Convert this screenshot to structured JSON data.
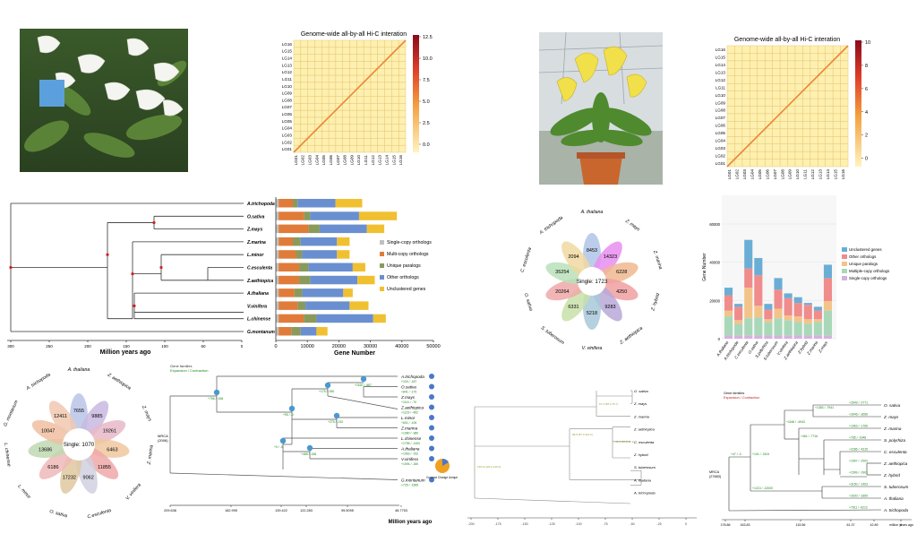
{
  "heatmap_left": {
    "title": "Genome-wide all-by-all Hi-C interation",
    "labels": [
      "LG01",
      "LG02",
      "LG03",
      "LG04",
      "LG05",
      "LG06",
      "LG07",
      "LG08",
      "LG09",
      "LG10",
      "LG11",
      "LG12",
      "LG13",
      "LG14",
      "LG15",
      "LG16"
    ],
    "colorbar_ticks": [
      "12.5",
      "10.0",
      "7.5",
      "5.0",
      "2.5",
      "0.0"
    ]
  },
  "heatmap_right": {
    "title": "Genome-wide all-by-all Hi-C interation",
    "labels": [
      "LG01",
      "LG02",
      "LG03",
      "LG04",
      "LG05",
      "LG06",
      "LG07",
      "LG08",
      "LG09",
      "LG10",
      "LG11",
      "LG12",
      "LG13",
      "LG14",
      "LG15",
      "LG16"
    ],
    "colorbar_ticks": [
      "10",
      "8",
      "6",
      "4",
      "2",
      "0"
    ]
  },
  "tree_left": {
    "species": [
      "A.trichopoda",
      "O.sativa",
      "Z.mays",
      "Z.marina",
      "L.minor",
      "C.esculenta",
      "Z.aethiopica",
      "A.thaliana",
      "V.vinifera",
      "L.chinense",
      "G.montanum"
    ],
    "axis_ticks": [
      "300",
      "250",
      "200",
      "150",
      "100",
      "50",
      "0"
    ],
    "axis_label": "Million years ago"
  },
  "chart_data": [
    {
      "type": "bar",
      "orientation": "horizontal",
      "stacked": true,
      "categories": [
        "A.trichopoda",
        "O.sativa",
        "Z.mays",
        "Z.marina",
        "L.minor",
        "C.esculenta",
        "Z.aethiopica",
        "A.thaliana",
        "V.vinifera",
        "L.chinense",
        "G.montanum"
      ],
      "series": [
        {
          "name": "Single-copy orthologs",
          "values": [
            900,
            900,
            900,
            900,
            900,
            900,
            900,
            900,
            900,
            900,
            900
          ]
        },
        {
          "name": "Multi-copy orthologs",
          "values": [
            4500,
            8000,
            9500,
            4500,
            5500,
            6500,
            6500,
            5000,
            6000,
            8000,
            4000
          ]
        },
        {
          "name": "Unique paralogs",
          "values": [
            1500,
            2000,
            3500,
            2500,
            2000,
            3000,
            3500,
            2500,
            2500,
            4000,
            3000
          ]
        },
        {
          "name": "Other orthologs",
          "values": [
            12000,
            15500,
            15000,
            11500,
            11000,
            14000,
            15000,
            13000,
            14000,
            18000,
            5000
          ]
        },
        {
          "name": "Unclustered genes",
          "values": [
            8500,
            12000,
            5500,
            4000,
            4000,
            4000,
            5500,
            3000,
            6000,
            4000,
            3500
          ]
        }
      ],
      "xlabel": "Gene Number",
      "xlim": [
        0,
        50000
      ],
      "xticks": [
        "0",
        "10000",
        "20000",
        "30000",
        "40000",
        "50000"
      ],
      "colors": [
        "#c0c0c0",
        "#e07b39",
        "#8a9a5b",
        "#6a8fd0",
        "#f0c030"
      ]
    },
    {
      "type": "bar",
      "stacked": true,
      "categories": [
        "A.thaliana",
        "A.trichopoda",
        "C.esculenta",
        "O.sativa",
        "S.polyrhiza",
        "S.tuberosum",
        "V.vinifera",
        "Z.aethiopica",
        "Z.hybrid",
        "Z.marina",
        "Z.mays"
      ],
      "series": [
        {
          "name": "Single-copy orthologs",
          "values": [
            1700,
            1700,
            1700,
            1700,
            1700,
            1700,
            1700,
            1700,
            1700,
            1700,
            1700
          ]
        },
        {
          "name": "Multiple-copy orthologs",
          "values": [
            10000,
            6000,
            9000,
            9500,
            7000,
            9000,
            8000,
            7000,
            6000,
            7000,
            13000
          ]
        },
        {
          "name": "Unique paralogs",
          "values": [
            3000,
            2000,
            16000,
            6000,
            1500,
            5000,
            2500,
            3000,
            2500,
            1500,
            5000
          ]
        },
        {
          "name": "Other orthologs",
          "values": [
            8000,
            7000,
            10000,
            16000,
            5000,
            10000,
            9000,
            7000,
            7500,
            4500,
            12000
          ]
        },
        {
          "name": "Unclustered genes",
          "values": [
            4000,
            1500,
            15000,
            9000,
            3000,
            6000,
            2500,
            3000,
            1000,
            2000,
            7000
          ]
        }
      ],
      "ylabel": "Gene Number",
      "ylim": [
        0,
        75000
      ],
      "yticks": [
        "0",
        "20000",
        "40000",
        "60000"
      ],
      "legend": [
        "Unclustered genes",
        "Other orthologs",
        "Unique paralogs",
        "Multiple-copy orthologs",
        "Single-copy orthologs"
      ],
      "colors": [
        "#d6b0e0",
        "#a8d8b8",
        "#f2c48a",
        "#f08c8c",
        "#6aaed6"
      ]
    }
  ],
  "flower_right": {
    "center": "Single: 1723",
    "petals": [
      {
        "species": "A. thaliana",
        "count": "8453",
        "color": "#b0c4e8"
      },
      {
        "species": "Z. mays",
        "count": "14323",
        "color": "#e88ef0"
      },
      {
        "species": "Z. marina",
        "count": "6228",
        "color": "#f0b890"
      },
      {
        "species": "Z. hybrid",
        "count": "4250",
        "color": "#f0a0a0"
      },
      {
        "species": "Z. aethiopica",
        "count": "9283",
        "color": "#b8a8d8"
      },
      {
        "species": "V. vinifera",
        "count": "5218",
        "color": "#a8c8d8"
      },
      {
        "species": "S. tuberosum",
        "count": "6331",
        "color": "#c8e0a8"
      },
      {
        "species": "O. sativa",
        "count": "20264",
        "color": "#f0a8a8"
      },
      {
        "species": "C. esculenta",
        "count": "35254",
        "color": "#b8e0b8"
      },
      {
        "species": "A. trichopoda",
        "count": "2094",
        "color": "#f0d8a0"
      }
    ]
  },
  "flower_left": {
    "center": "Single: 1070",
    "petals": [
      {
        "species": "A. thaliana",
        "count": "7655",
        "color": "#b8c4e8"
      },
      {
        "species": "Z. aethiopica",
        "count": "9885",
        "color": "#c8b8e0"
      },
      {
        "species": "Z. mays",
        "count": "19261",
        "color": "#e8b8c8"
      },
      {
        "species": "Z. marina",
        "count": "6463",
        "color": "#f0c8a0"
      },
      {
        "species": "V. vinifera",
        "count": "11855",
        "color": "#f0a8a8"
      },
      {
        "species": "C.esculenta",
        "count": "9062",
        "color": "#d0d0e0"
      },
      {
        "species": "O. sativa",
        "count": "17232",
        "color": "#e0c8a0"
      },
      {
        "species": "L. minor",
        "count": "6186",
        "color": "#f0b8b8"
      },
      {
        "species": "L. chinense",
        "count": "13686",
        "color": "#c0d8b0"
      },
      {
        "species": "G. montanum",
        "count": "10047",
        "color": "#f0c0a0"
      },
      {
        "species": "A. trichopoda",
        "count": "12411",
        "color": "#f0c8b0"
      }
    ]
  },
  "expansion_left": {
    "legend_title": "Gene families",
    "legend_sub": "Expansion / Contraction",
    "mrca": "MRCA\n(2006)",
    "species": [
      "A.trichopoda",
      "O.sativa",
      "Z.mays",
      "Z.aethiopica",
      "L.minor",
      "Z.marina",
      "L.chinense",
      "A.thaliana",
      "V.vinifera",
      "G.montanum"
    ],
    "axis_ticks": [
      "209.638",
      "182.995",
      "139.422",
      "122.283",
      "95.5095",
      "48.7753"
    ],
    "axis_label": "Million years ago",
    "pie_legend": "Contract Change Unique gains",
    "node_labels": [
      "+766 / -166",
      "+90 / -0",
      "+175 / -930",
      "+1160 / -687",
      "+275 / -210",
      "+0 / -0",
      "+468 / -185"
    ],
    "tip_labels": [
      "+104 / -187",
      "+841 / -170",
      "+1141 / -70",
      "+1123 / -462",
      "+601 / -105",
      "+1080 / -380",
      "+1795 / -1400",
      "+1063 / -152",
      "+1094 / -180",
      "+725 / -1565"
    ]
  },
  "tree_right": {
    "species": [
      "O. sativa",
      "Z. mays",
      "Z. marina",
      "Z. aethiopica",
      "C. esculenta",
      "Z. hybrid",
      "S. tuberosum",
      "A. thaliana",
      "A. trichopoda"
    ],
    "node_labels": [
      "130.8 (120.2-140.6)",
      "98.5 (87.3-110.2)",
      "67.3 (58.4-75.7)",
      "45.1 (38.2-52.1)"
    ],
    "axis_ticks": [
      "-200",
      "-175",
      "-150",
      "-125",
      "-100",
      "-75",
      "-50",
      "-25",
      "0"
    ]
  },
  "expansion_right": {
    "legend_title": "Gene families",
    "legend_sub": "Expansion / Contraction",
    "mrca": "MRCA\n(27883)",
    "species": [
      "O. sativa",
      "Z. mays",
      "Z. marina",
      "S. polyrhiza",
      "C. esculenta",
      "Z. aethiopica",
      "Z. hybrid",
      "S. tuberosum",
      "A. thaliana",
      "A. trichopoda"
    ],
    "tip_labels": [
      "+2649 / -2771",
      "+3046 / -3066",
      "+1963 / -1766",
      "+785 / -1948",
      "+2286 / -4315",
      "+1997 / -2002",
      "+1599 / -1901",
      "+3150 / -1403",
      "+2920 / -3359",
      "+7611 / -6212"
    ],
    "node_labels": [
      "+1166 / -4943",
      "+1383 / -7941",
      "+461 / -7716",
      "+47 / -0",
      "+101 / -3104",
      "+1213 / -12000"
    ],
    "axis_ticks": [
      "178.86",
      "163.83",
      "115.56",
      "61.37",
      "42.89",
      "0"
    ],
    "axis_label": "million years ago"
  }
}
